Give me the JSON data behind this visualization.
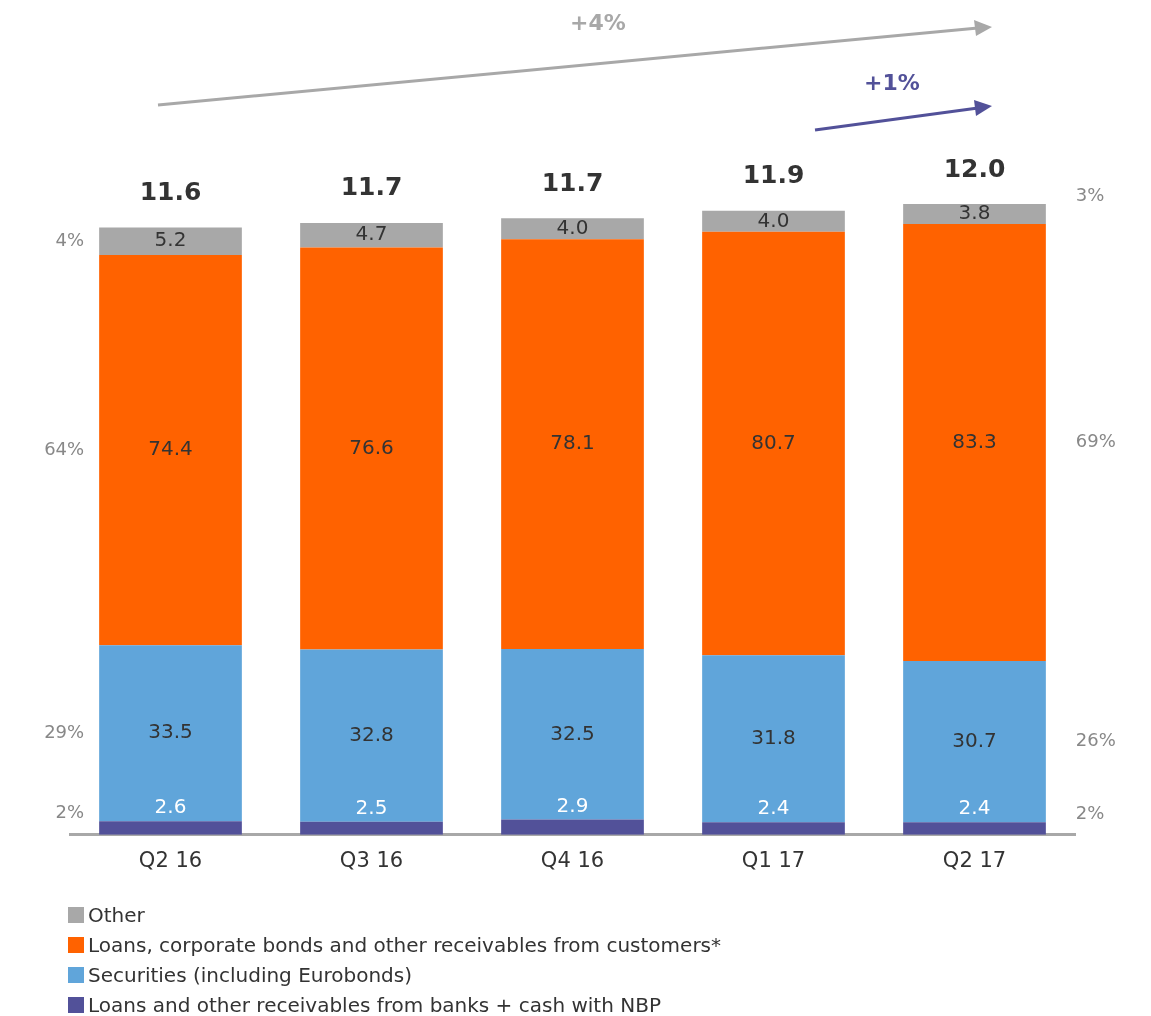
{
  "chart_data": {
    "type": "bar",
    "stacked": true,
    "legend": "bottom left",
    "grid": false,
    "categories": [
      "Q2 16",
      "Q3 16",
      "Q4 16",
      "Q1 17",
      "Q2 17"
    ],
    "series": [
      {
        "name": "Loans and other receivables from banks + cash with NBP",
        "color": "#525199",
        "values": [
          2.6,
          2.5,
          2.9,
          2.4,
          2.4
        ],
        "value_labels": [
          "2.6",
          "2.5",
          "2.9",
          "2.4",
          "2.4"
        ]
      },
      {
        "name": "Securities (including Eurobonds)",
        "color": "#60a5da",
        "values": [
          33.5,
          32.8,
          32.5,
          31.8,
          30.7
        ],
        "value_labels": [
          "33.5",
          "32.8",
          "32.5",
          "31.8",
          "30.7"
        ]
      },
      {
        "name": "Loans, corporate bonds and other receivables from customers*",
        "color": "#ff6200",
        "values": [
          74.4,
          76.6,
          78.1,
          80.7,
          83.3
        ],
        "value_labels": [
          "74.4",
          "76.6",
          "78.1",
          "80.7",
          "83.3"
        ]
      },
      {
        "name": "Other",
        "color": "#a8a8a8",
        "values": [
          5.2,
          4.7,
          4.0,
          4.0,
          3.8
        ],
        "value_labels": [
          "5.2",
          "4.7",
          "4.0",
          "4.0",
          "3.8"
        ]
      }
    ],
    "annotations": [
      "+4%",
      "+1%",
      "4%",
      "64%",
      "29%",
      "2%",
      "3%",
      "69%",
      "26%",
      "2%",
      "11.6",
      "11.7",
      "11.7",
      "11.9",
      "12.0"
    ]
  }
}
